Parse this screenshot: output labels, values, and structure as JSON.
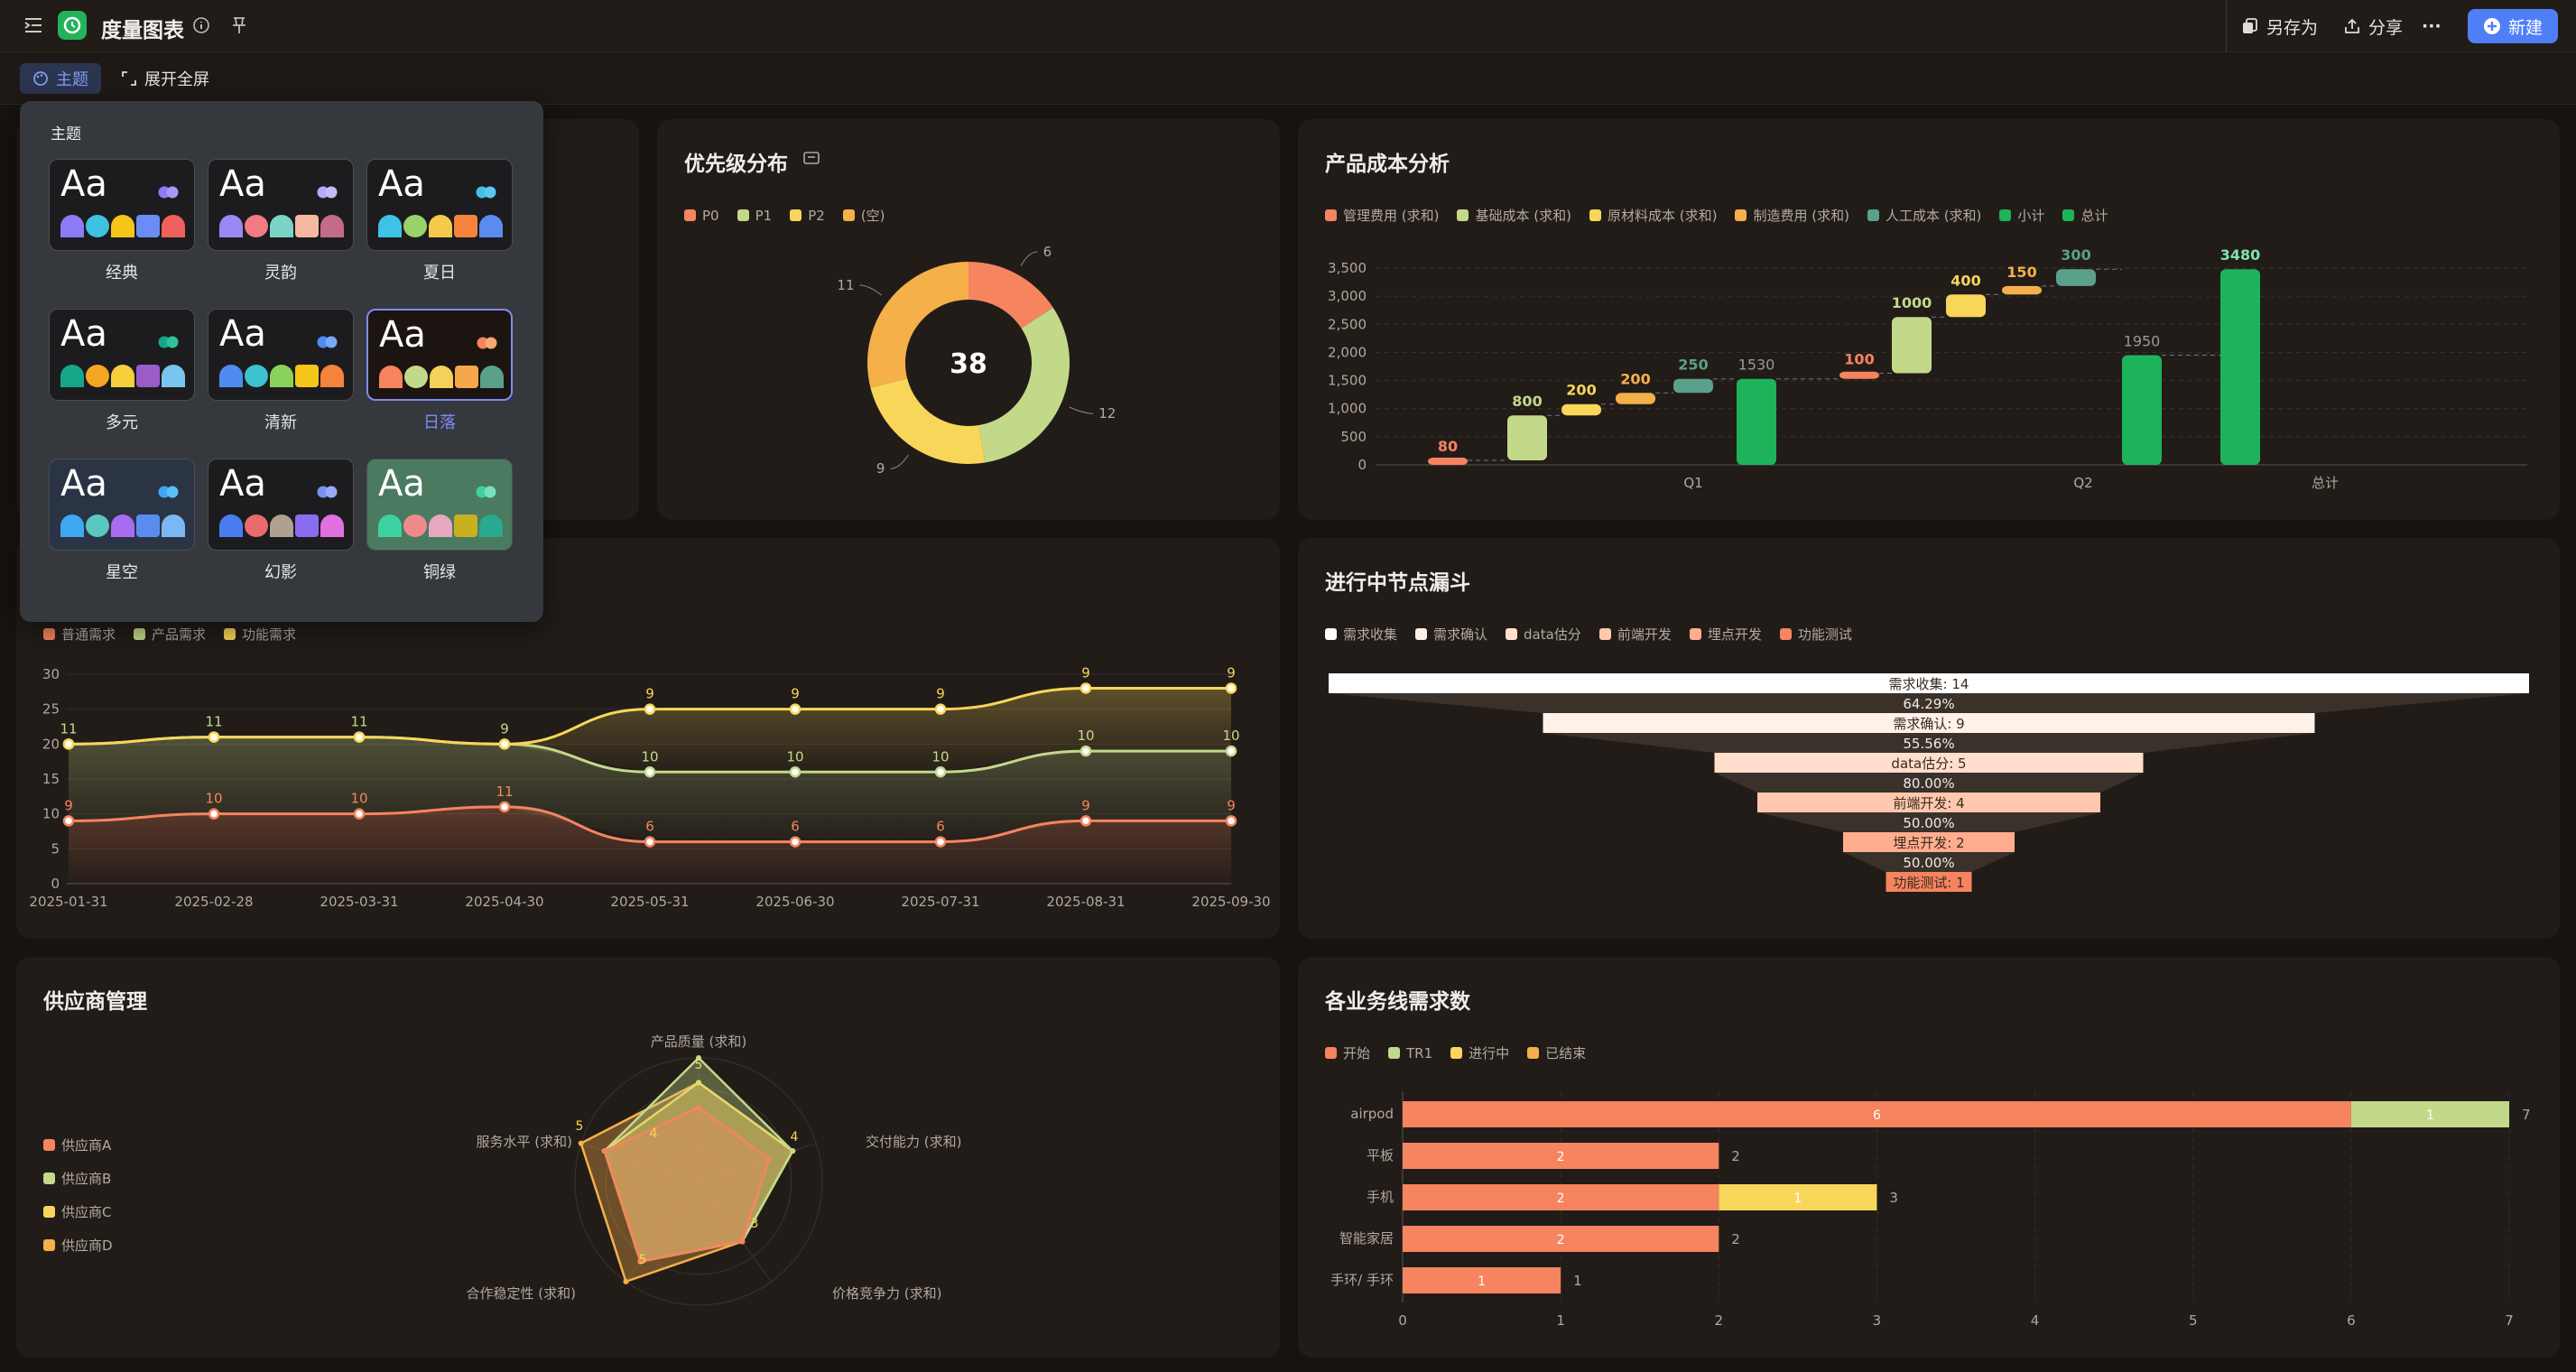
{
  "app": {
    "title": "度量图表"
  },
  "toolbar": {
    "save_as": "另存为",
    "share": "分享",
    "new": "新建",
    "more": "···"
  },
  "subbar": {
    "theme": "主题",
    "fullscreen": "展开全屏"
  },
  "theme_panel": {
    "title": "主题",
    "selected": "日落",
    "themes": [
      {
        "name": "经典",
        "bg": "#1c1c1f",
        "colors": [
          "#8b7cf6",
          "#3ec2e0",
          "#f5c518",
          "#6b8bf5",
          "#f0605a"
        ],
        "dots": [
          "#8b7cf6",
          "#a59af8"
        ]
      },
      {
        "name": "灵韵",
        "bg": "#1c1c1f",
        "colors": [
          "#9b87f5",
          "#f07b82",
          "#7ad4c8",
          "#f5b8a0",
          "#c46a8a"
        ],
        "dots": [
          "#b8a8f8",
          "#c9b8fa"
        ]
      },
      {
        "name": "夏日",
        "bg": "#1c1c1f",
        "colors": [
          "#3ec2e8",
          "#9ad26a",
          "#f5c94a",
          "#f5833c",
          "#5a8cf0"
        ],
        "dots": [
          "#3ec2e8",
          "#5ac8f5"
        ]
      },
      {
        "name": "多元",
        "bg": "#1c1c1f",
        "colors": [
          "#17a58a",
          "#f5a623",
          "#f5cf3c",
          "#9a5cc8",
          "#7ac4f0"
        ],
        "dots": [
          "#17a58a",
          "#30c09a"
        ]
      },
      {
        "name": "清新",
        "bg": "#1c1c1f",
        "colors": [
          "#4f8cf0",
          "#3ec2d0",
          "#8ad25a",
          "#f5c518",
          "#f5833c"
        ],
        "dots": [
          "#4f8cf0",
          "#7aa8f5"
        ]
      },
      {
        "name": "日落",
        "bg": "#1c1410",
        "colors": [
          "#f5845f",
          "#c3d98a",
          "#f5d05a",
          "#f5a84a",
          "#5aa08a"
        ],
        "dots": [
          "#f5845f",
          "#f5a870"
        ]
      },
      {
        "name": "星空",
        "bg": "#2a3444",
        "colors": [
          "#3ea8f0",
          "#5ac8c0",
          "#a86cf0",
          "#5a8cf0",
          "#7ab8f5"
        ],
        "dots": [
          "#3ea8f0",
          "#5ac0f5"
        ]
      },
      {
        "name": "幻影",
        "bg": "#1c1c1f",
        "colors": [
          "#4a7cf0",
          "#e86a6a",
          "#b0a090",
          "#8a6cf0",
          "#e070e0"
        ],
        "dots": [
          "#7a90f0",
          "#9aa8f5"
        ]
      },
      {
        "name": "铜绿",
        "bg": "#4a7a60",
        "colors": [
          "#3ed0a0",
          "#f08a8a",
          "#e8a8c0",
          "#c8b020",
          "#2aa890"
        ],
        "dots": [
          "#3ed0a0",
          "#7ae0b8"
        ]
      }
    ]
  },
  "priority": {
    "title": "优先级分布",
    "total": "38",
    "legend": [
      {
        "name": "P0",
        "color": "#f5845f"
      },
      {
        "name": "P1",
        "color": "#c3d98a"
      },
      {
        "name": "P2",
        "color": "#f8d65a"
      },
      {
        "name": "(空)",
        "color": "#f5b04a"
      }
    ],
    "slice_labels": [
      "6",
      "12",
      "9",
      "11"
    ]
  },
  "cost": {
    "title": "产品成本分析",
    "legend": [
      {
        "name": "管理费用 (求和)",
        "color": "#f5845f"
      },
      {
        "name": "基础成本 (求和)",
        "color": "#c3d98a"
      },
      {
        "name": "原材料成本 (求和)",
        "color": "#f8d65a"
      },
      {
        "name": "制造费用 (求和)",
        "color": "#f5b04a"
      },
      {
        "name": "人工成本 (求和)",
        "color": "#5aa08a"
      },
      {
        "name": "小计",
        "color": "#1db35a"
      },
      {
        "name": "总计",
        "color": "#1db35a"
      }
    ],
    "groups": [
      "Q1",
      "Q2",
      "总计"
    ],
    "yticks": [
      "3,500",
      "3,000",
      "2,500",
      "2,000",
      "1,500",
      "1,000",
      "500",
      "0"
    ]
  },
  "line": {
    "legend": [
      {
        "name": "普通需求",
        "color": "#f5845f"
      },
      {
        "name": "产品需求",
        "color": "#c3d98a"
      },
      {
        "name": "功能需求",
        "color": "#f8d65a"
      }
    ],
    "yticks": [
      "30",
      "25",
      "20",
      "15",
      "10",
      "5",
      "0"
    ],
    "x_labels": [
      "2025-01-31",
      "2025-02-28",
      "2025-03-31",
      "2025-04-30",
      "2025-05-31",
      "2025-06-30",
      "2025-07-31",
      "2025-08-31",
      "2025-09-30"
    ]
  },
  "funnel": {
    "title": "进行中节点漏斗",
    "legend": [
      {
        "name": "需求收集",
        "color": "#ffffff"
      },
      {
        "name": "需求确认",
        "color": "#fff1e8"
      },
      {
        "name": "data估分",
        "color": "#ffdfcc"
      },
      {
        "name": "前端开发",
        "color": "#ffc8ad"
      },
      {
        "name": "埋点开发",
        "color": "#ffad8e"
      },
      {
        "name": "功能测试",
        "color": "#f5845f"
      }
    ],
    "stages": [
      {
        "label": "需求收集: 14",
        "color": "#ffffff"
      },
      {
        "label": "需求确认: 9",
        "color": "#fff1e8"
      },
      {
        "label": "data估分: 5",
        "color": "#ffdfcc"
      },
      {
        "label": "前端开发: 4",
        "color": "#ffc8ad"
      },
      {
        "label": "埋点开发: 2",
        "color": "#ffad8e"
      },
      {
        "label": "功能测试: 1",
        "color": "#f5845f"
      }
    ],
    "rates": [
      "64.29%",
      "55.56%",
      "80.00%",
      "50.00%",
      "50.00%"
    ]
  },
  "supplier": {
    "title": "供应商管理",
    "legend": [
      {
        "name": "供应商A",
        "color": "#f5845f"
      },
      {
        "name": "供应商B",
        "color": "#c3d98a"
      },
      {
        "name": "供应商C",
        "color": "#f8d65a"
      },
      {
        "name": "供应商D",
        "color": "#f5b04a"
      }
    ],
    "axes": [
      "产品质量 (求和)",
      "交付能力 (求和)",
      "价格竞争力 (求和)",
      "合作稳定性 (求和)",
      "服务水平 (求和)"
    ]
  },
  "business": {
    "title": "各业务线需求数",
    "legend": [
      {
        "name": "开始",
        "color": "#f5845f"
      },
      {
        "name": "TR1",
        "color": "#c3d98a"
      },
      {
        "name": "进行中",
        "color": "#f8d65a"
      },
      {
        "name": "已结束",
        "color": "#f5b04a"
      }
    ],
    "xticks": [
      "0",
      "1",
      "2",
      "3",
      "4",
      "5",
      "6",
      "7"
    ]
  },
  "chart_data": [
    {
      "type": "pie",
      "title": "优先级分布",
      "categories": [
        "P0",
        "P1",
        "P2",
        "(空)"
      ],
      "values": [
        6,
        12,
        9,
        11
      ],
      "total": 38
    },
    {
      "type": "bar",
      "title": "产品成本分析",
      "subtype": "waterfall",
      "categories": [
        "管理费用 (求和)",
        "基础成本 (求和)",
        "原材料成本 (求和)",
        "制造费用 (求和)",
        "人工成本 (求和)",
        "小计",
        "管理费用 (求和)",
        "基础成本 (求和)",
        "原材料成本 (求和)",
        "制造费用 (求和)",
        "人工成本 (求和)",
        "小计",
        "总计"
      ],
      "values": [
        80,
        800,
        200,
        200,
        250,
        1530,
        100,
        1000,
        400,
        150,
        300,
        1950,
        3480
      ],
      "kinds": [
        "d",
        "d",
        "d",
        "d",
        "d",
        "sub",
        "d",
        "d",
        "d",
        "d",
        "d",
        "sub",
        "total"
      ],
      "groups": [
        "Q1",
        "Q2",
        "总计"
      ],
      "ylim": [
        0,
        3500
      ]
    },
    {
      "type": "area",
      "categories": [
        "2025-01-31",
        "2025-02-28",
        "2025-03-31",
        "2025-04-30",
        "2025-05-31",
        "2025-06-30",
        "2025-07-31",
        "2025-08-31",
        "2025-09-30"
      ],
      "series": [
        {
          "name": "普通需求",
          "values": [
            9,
            10,
            10,
            11,
            6,
            6,
            6,
            9,
            9
          ]
        },
        {
          "name": "产品需求",
          "values": [
            11,
            11,
            11,
            9,
            10,
            10,
            10,
            10,
            10
          ]
        },
        {
          "name": "功能需求",
          "values": [
            0,
            0,
            0,
            0,
            9,
            9,
            9,
            9,
            9
          ]
        }
      ],
      "stacked": true,
      "ylim": [
        0,
        30
      ]
    },
    {
      "type": "funnel",
      "title": "进行中节点漏斗",
      "categories": [
        "需求收集",
        "需求确认",
        "data估分",
        "前端开发",
        "埋点开发",
        "功能测试"
      ],
      "values": [
        14,
        9,
        5,
        4,
        2,
        1
      ]
    },
    {
      "type": "radar",
      "title": "供应商管理",
      "axes": [
        "产品质量 (求和)",
        "交付能力 (求和)",
        "价格竞争力 (求和)",
        "合作稳定性 (求和)",
        "服务水平 (求和)"
      ],
      "max": 5,
      "series": [
        {
          "name": "供应商A",
          "values": [
            3,
            3,
            3,
            4,
            4
          ]
        },
        {
          "name": "供应商B",
          "values": [
            5,
            4,
            3,
            4,
            4
          ]
        },
        {
          "name": "供应商C",
          "values": [
            4,
            4,
            3,
            4,
            4
          ]
        },
        {
          "name": "供应商D",
          "values": [
            4,
            4,
            3,
            5,
            5
          ]
        }
      ]
    },
    {
      "type": "bar",
      "title": "各业务线需求数",
      "orientation": "horizontal",
      "stacked": true,
      "categories": [
        "airpod",
        "平板",
        "手机",
        "智能家居",
        "手环/ 手环"
      ],
      "series": [
        {
          "name": "开始",
          "values": [
            6,
            2,
            2,
            2,
            1
          ]
        },
        {
          "name": "TR1",
          "values": [
            1,
            0,
            0,
            0,
            0
          ]
        },
        {
          "name": "进行中",
          "values": [
            0,
            0,
            1,
            0,
            0
          ]
        }
      ],
      "totals": [
        7,
        2,
        3,
        2,
        1
      ],
      "xlim": [
        0,
        7
      ]
    }
  ]
}
